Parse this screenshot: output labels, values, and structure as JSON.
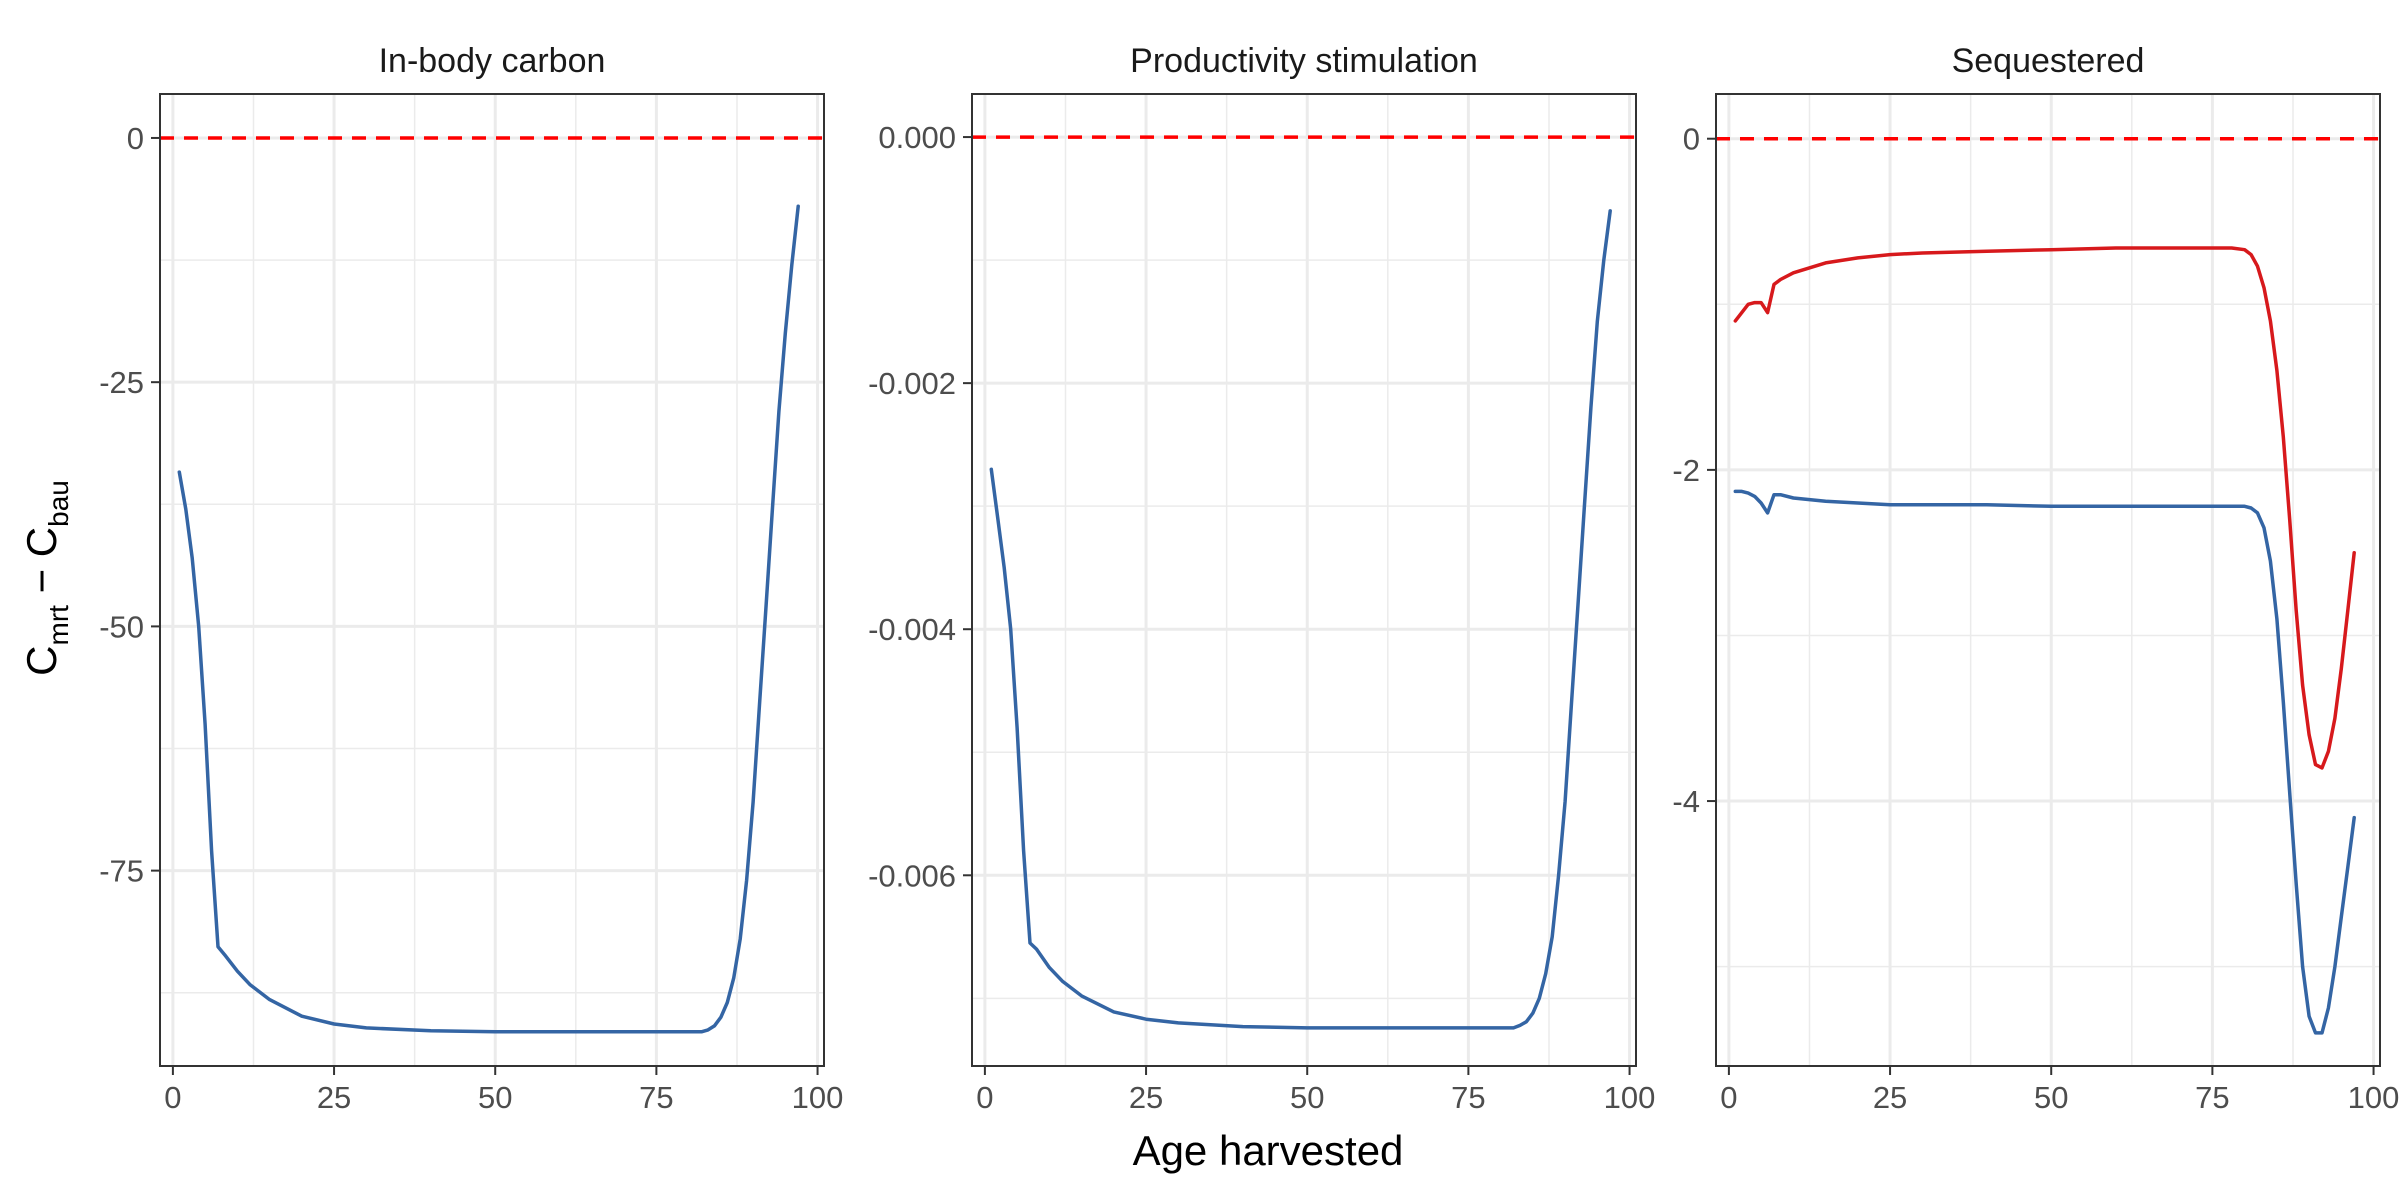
{
  "axis_titles": {
    "x": "Age harvested",
    "y_main": "C",
    "y_sub1": "mrt",
    "y_minus": " − C",
    "y_sub2": "bau"
  },
  "colors": {
    "blue": "#3465A4",
    "red": "#D7191C",
    "reference_line": "#FF0000",
    "grid": "#EBEBEB",
    "panel_border": "#333333"
  },
  "chart_data": [
    {
      "type": "line",
      "title": "In-body carbon",
      "xlim": [
        -2,
        101
      ],
      "ylim": [
        -95,
        4.5
      ],
      "x_ticks": [
        0,
        25,
        50,
        75,
        100
      ],
      "x_tick_labels": [
        "0",
        "25",
        "50",
        "75",
        "100"
      ],
      "y_ticks": [
        0,
        -25,
        -50,
        -75
      ],
      "y_tick_labels": [
        "0",
        "-25",
        "-50",
        "-75"
      ],
      "y_minor": [
        -12.5,
        -37.5,
        -62.5,
        -87.5
      ],
      "reference_line": 0,
      "series": [
        {
          "color": "blue",
          "x": [
            1,
            2,
            3,
            4,
            5,
            6,
            7,
            8,
            10,
            12,
            15,
            20,
            25,
            30,
            40,
            50,
            60,
            70,
            80,
            82,
            83,
            84,
            85,
            86,
            87,
            88,
            89,
            90,
            91,
            92,
            93,
            94,
            95,
            96,
            97
          ],
          "y": [
            -34.2,
            -38,
            -43,
            -50,
            -60,
            -73,
            -82.8,
            -83.6,
            -85.3,
            -86.7,
            -88.2,
            -89.9,
            -90.7,
            -91.1,
            -91.4,
            -91.5,
            -91.5,
            -91.5,
            -91.5,
            -91.5,
            -91.3,
            -90.9,
            -90,
            -88.5,
            -86,
            -82,
            -76,
            -68,
            -58,
            -48,
            -38,
            -28,
            -20,
            -13,
            -7
          ]
        }
      ]
    },
    {
      "type": "line",
      "title": "Productivity stimulation",
      "xlim": [
        -2,
        101
      ],
      "ylim": [
        -0.00755,
        0.00035
      ],
      "x_ticks": [
        0,
        25,
        50,
        75,
        100
      ],
      "x_tick_labels": [
        "0",
        "25",
        "50",
        "75",
        "100"
      ],
      "y_ticks": [
        0,
        -0.002,
        -0.004,
        -0.006
      ],
      "y_tick_labels": [
        "0.000",
        "-0.002",
        "-0.004",
        "-0.006"
      ],
      "y_minor": [
        -0.001,
        -0.003,
        -0.005,
        -0.007
      ],
      "reference_line": 0,
      "series": [
        {
          "color": "blue",
          "x": [
            1,
            2,
            3,
            4,
            5,
            6,
            7,
            8,
            10,
            12,
            15,
            20,
            25,
            30,
            40,
            50,
            60,
            70,
            80,
            82,
            83,
            84,
            85,
            86,
            87,
            88,
            89,
            90,
            91,
            92,
            93,
            94,
            95,
            96,
            97
          ],
          "y": [
            -0.0027,
            -0.0031,
            -0.0035,
            -0.004,
            -0.0048,
            -0.0058,
            -0.00655,
            -0.0066,
            -0.00675,
            -0.00686,
            -0.00698,
            -0.00711,
            -0.00717,
            -0.0072,
            -0.00723,
            -0.00724,
            -0.00724,
            -0.00724,
            -0.00724,
            -0.00724,
            -0.00722,
            -0.00719,
            -0.00712,
            -0.007,
            -0.0068,
            -0.0065,
            -0.006,
            -0.0054,
            -0.0046,
            -0.0038,
            -0.003,
            -0.0022,
            -0.0015,
            -0.001,
            -0.0006
          ]
        }
      ]
    },
    {
      "type": "line",
      "title": "Sequestered",
      "xlim": [
        -2,
        101
      ],
      "ylim": [
        -5.6,
        0.27
      ],
      "x_ticks": [
        0,
        25,
        50,
        75,
        100
      ],
      "x_tick_labels": [
        "0",
        "25",
        "50",
        "75",
        "100"
      ],
      "y_ticks": [
        0,
        -2,
        -4
      ],
      "y_tick_labels": [
        "0",
        "-2",
        "-4"
      ],
      "y_minor": [
        -1,
        -3,
        -5
      ],
      "reference_line": 0,
      "series": [
        {
          "color": "red",
          "x": [
            1,
            2,
            3,
            4,
            5,
            6,
            7,
            8,
            10,
            15,
            20,
            25,
            30,
            40,
            50,
            60,
            70,
            78,
            80,
            81,
            82,
            83,
            84,
            85,
            86,
            87,
            88,
            89,
            90,
            91,
            92,
            93,
            94,
            95,
            96,
            97
          ],
          "y": [
            -1.1,
            -1.05,
            -1,
            -0.99,
            -0.99,
            -1.05,
            -0.88,
            -0.85,
            -0.81,
            -0.75,
            -0.72,
            -0.7,
            -0.69,
            -0.68,
            -0.67,
            -0.66,
            -0.66,
            -0.66,
            -0.67,
            -0.7,
            -0.77,
            -0.9,
            -1.1,
            -1.4,
            -1.8,
            -2.3,
            -2.85,
            -3.3,
            -3.6,
            -3.78,
            -3.8,
            -3.7,
            -3.5,
            -3.2,
            -2.85,
            -2.5
          ]
        },
        {
          "color": "blue",
          "x": [
            1,
            2,
            3,
            4,
            5,
            6,
            7,
            8,
            10,
            15,
            20,
            25,
            30,
            40,
            50,
            60,
            70,
            78,
            80,
            81,
            82,
            83,
            84,
            85,
            86,
            87,
            88,
            89,
            90,
            91,
            92,
            93,
            94,
            95,
            96,
            97
          ],
          "y": [
            -2.13,
            -2.13,
            -2.14,
            -2.16,
            -2.2,
            -2.26,
            -2.15,
            -2.15,
            -2.17,
            -2.19,
            -2.2,
            -2.21,
            -2.21,
            -2.21,
            -2.22,
            -2.22,
            -2.22,
            -2.22,
            -2.22,
            -2.23,
            -2.26,
            -2.35,
            -2.55,
            -2.9,
            -3.4,
            -3.95,
            -4.5,
            -5,
            -5.3,
            -5.4,
            -5.4,
            -5.25,
            -5,
            -4.7,
            -4.4,
            -4.1
          ]
        }
      ]
    }
  ]
}
